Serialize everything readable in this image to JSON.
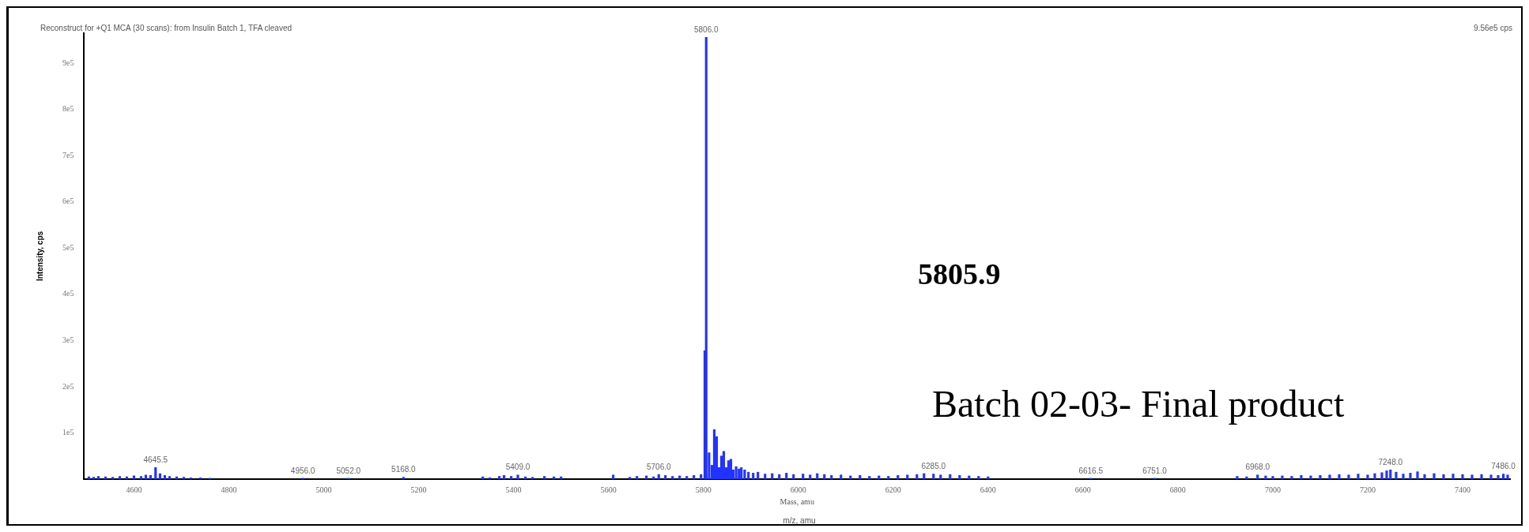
{
  "chart_data": {
    "type": "bar",
    "title": "Reconstruct for +Q1 MCA (30 scans): from Insulin Batch 1, TFA cleaved",
    "xlabel": "Mass, amu",
    "ylabel": "Intensity, cps",
    "color": "#2233ff",
    "x": [
      4505,
      4515,
      4525,
      4540,
      4555,
      4570,
      4585,
      4600,
      4615,
      4625,
      4635,
      4645.5,
      4655,
      4665,
      4675,
      4690,
      4705,
      4720,
      4740,
      4760,
      4956,
      5052,
      5168,
      5335,
      5350,
      5370,
      5380,
      5395,
      5409,
      5425,
      5440,
      5465,
      5485,
      5500,
      5610,
      5645,
      5660,
      5680,
      5695,
      5706,
      5720,
      5735,
      5750,
      5765,
      5780,
      5795,
      5803,
      5806,
      5812,
      5818,
      5823,
      5828,
      5833,
      5838,
      5843,
      5848,
      5853,
      5858,
      5863,
      5869,
      5875,
      5880,
      5887,
      5895,
      5905,
      5915,
      5930,
      5945,
      5960,
      5975,
      5990,
      6010,
      6025,
      6040,
      6055,
      6070,
      6090,
      6110,
      6130,
      6150,
      6170,
      6190,
      6210,
      6230,
      6250,
      6265,
      6285,
      6300,
      6320,
      6340,
      6360,
      6380,
      6400,
      6616.5,
      6751,
      6925,
      6945,
      6968,
      6985,
      7000,
      7020,
      7040,
      7060,
      7080,
      7100,
      7120,
      7140,
      7160,
      7180,
      7200,
      7215,
      7230,
      7240,
      7248,
      7260,
      7275,
      7290,
      7305,
      7320,
      7340,
      7360,
      7380,
      7400,
      7420,
      7440,
      7460,
      7475,
      7486,
      7495
    ],
    "values": [
      5000,
      4000,
      6000,
      5000,
      4000,
      6000,
      5000,
      7000,
      6000,
      9000,
      8000,
      25000,
      12000,
      8000,
      6000,
      5000,
      4000,
      3000,
      3000,
      2000,
      2000,
      2000,
      4000,
      5000,
      3000,
      6000,
      8000,
      6000,
      9000,
      5000,
      4000,
      6000,
      5000,
      5000,
      9000,
      4000,
      6000,
      7000,
      5000,
      10000,
      8000,
      6000,
      7000,
      6000,
      8000,
      10000,
      278000,
      956000,
      57000,
      30000,
      107000,
      92000,
      25000,
      50000,
      60000,
      25000,
      40000,
      43000,
      20000,
      27000,
      22000,
      25000,
      20000,
      15000,
      13000,
      15000,
      11000,
      12000,
      10000,
      13000,
      10000,
      11000,
      9000,
      12000,
      10000,
      8000,
      9000,
      7000,
      8000,
      6000,
      7000,
      6000,
      8000,
      9000,
      10000,
      12000,
      11000,
      9000,
      10000,
      8000,
      7000,
      6000,
      5000,
      2000,
      2000,
      6000,
      5000,
      9000,
      7000,
      6000,
      7000,
      6000,
      8000,
      7000,
      8000,
      9000,
      10000,
      9000,
      11000,
      9000,
      12000,
      14000,
      18000,
      20000,
      15000,
      11000,
      13000,
      16000,
      10000,
      12000,
      10000,
      11000,
      10000,
      9000,
      10000,
      9000,
      8000,
      11000,
      9000
    ],
    "xlim": [
      4495,
      7500
    ],
    "xticks": [
      4600,
      4800,
      5000,
      5200,
      5400,
      5600,
      5800,
      6000,
      6200,
      6400,
      6600,
      6800,
      7000,
      7200,
      7400
    ],
    "ylim": [
      0,
      965000
    ],
    "yticks": [
      {
        "value": 100000,
        "label": "1e5"
      },
      {
        "value": 200000,
        "label": "2e5"
      },
      {
        "value": 300000,
        "label": "3e5"
      },
      {
        "value": 400000,
        "label": "4e5"
      },
      {
        "value": 500000,
        "label": "5e5"
      },
      {
        "value": 600000,
        "label": "6e5"
      },
      {
        "value": 700000,
        "label": "7e5"
      },
      {
        "value": 800000,
        "label": "8e5"
      },
      {
        "value": 900000,
        "label": "9e5"
      }
    ],
    "annotations": [
      "9.56e5 cps",
      "5805.9",
      "Batch 02-03- Final product",
      "m/z, amu",
      {
        "text": "4645.5",
        "x": 4645.5,
        "y": 25000
      },
      {
        "text": "4956.0",
        "x": 4956,
        "y": 2000
      },
      {
        "text": "5052.0",
        "x": 5052,
        "y": 2000
      },
      {
        "text": "5168.0",
        "x": 5168,
        "y": 4000
      },
      {
        "text": "5409.0",
        "x": 5409,
        "y": 9000
      },
      {
        "text": "5706.0",
        "x": 5706,
        "y": 10000
      },
      {
        "text": "5806.0",
        "x": 5806,
        "y": 956000
      },
      {
        "text": "6285.0",
        "x": 6285,
        "y": 11000
      },
      {
        "text": "6616.5",
        "x": 6616.5,
        "y": 2000
      },
      {
        "text": "6751.0",
        "x": 6751,
        "y": 2000
      },
      {
        "text": "6968.0",
        "x": 6968,
        "y": 9000
      },
      {
        "text": "7248.0",
        "x": 7248,
        "y": 20000
      },
      {
        "text": "7486.0",
        "x": 7486,
        "y": 11000
      }
    ],
    "grid": false,
    "legend": false
  }
}
